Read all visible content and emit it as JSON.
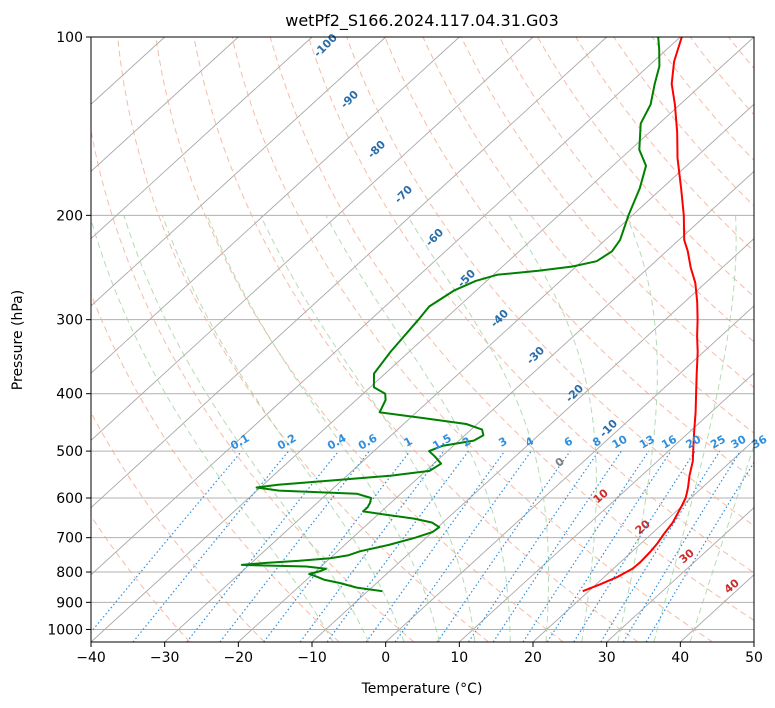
{
  "chart_data": {
    "type": "line",
    "title": "wetPf2_S166.2024.117.04.31.G03",
    "xlabel": "Temperature (°C)",
    "ylabel": "Pressure (hPa)",
    "xlim": [
      -40,
      50
    ],
    "ylim": [
      1050,
      100
    ],
    "y_scale": "log",
    "skew": "skew-T",
    "grid": true,
    "x_ticks": [
      -40,
      -30,
      -20,
      -10,
      0,
      10,
      20,
      30,
      40,
      50
    ],
    "y_ticks": [
      100,
      200,
      300,
      400,
      500,
      600,
      700,
      800,
      900,
      1000
    ],
    "series": [
      {
        "color": "#ff0000",
        "points": [
          [
            862,
            19.2
          ],
          [
            840,
            20.5
          ],
          [
            815,
            21.8
          ],
          [
            790,
            22.6
          ],
          [
            770,
            22.7
          ],
          [
            740,
            22.5
          ],
          [
            715,
            22.2
          ],
          [
            690,
            21.7
          ],
          [
            660,
            21.2
          ],
          [
            640,
            20.6
          ],
          [
            620,
            20.0
          ],
          [
            600,
            19.3
          ],
          [
            590,
            18.8
          ],
          [
            575,
            18.0
          ],
          [
            550,
            16.5
          ],
          [
            520,
            14.8
          ],
          [
            490,
            12.6
          ],
          [
            460,
            10.3
          ],
          [
            430,
            7.9
          ],
          [
            400,
            5.2
          ],
          [
            370,
            2.3
          ],
          [
            340,
            -0.8
          ],
          [
            320,
            -3.2
          ],
          [
            300,
            -5.6
          ],
          [
            280,
            -8.3
          ],
          [
            260,
            -11.4
          ],
          [
            245,
            -14.3
          ],
          [
            230,
            -17.1
          ],
          [
            220,
            -19.3
          ],
          [
            200,
            -23.0
          ],
          [
            180,
            -27.4
          ],
          [
            160,
            -32.4
          ],
          [
            145,
            -36.2
          ],
          [
            130,
            -40.7
          ],
          [
            120,
            -44.2
          ],
          [
            110,
            -47.2
          ],
          [
            100,
            -49.8
          ]
        ]
      },
      {
        "color": "#008000",
        "points": [
          [
            862,
            -8.0
          ],
          [
            850,
            -12.0
          ],
          [
            835,
            -15.0
          ],
          [
            825,
            -17.5
          ],
          [
            815,
            -19.0
          ],
          [
            806,
            -20.5
          ],
          [
            798,
            -19.5
          ],
          [
            790,
            -19.0
          ],
          [
            783,
            -22.0
          ],
          [
            778,
            -31.0
          ],
          [
            772,
            -28.0
          ],
          [
            766,
            -24.0
          ],
          [
            758,
            -20.0
          ],
          [
            750,
            -18.0
          ],
          [
            738,
            -17.0
          ],
          [
            720,
            -14.0
          ],
          [
            700,
            -11.5
          ],
          [
            685,
            -10.0
          ],
          [
            672,
            -9.8
          ],
          [
            660,
            -11.5
          ],
          [
            650,
            -14.5
          ],
          [
            640,
            -19.0
          ],
          [
            632,
            -22.5
          ],
          [
            622,
            -22.5
          ],
          [
            612,
            -22.8
          ],
          [
            600,
            -23.4
          ],
          [
            590,
            -26.0
          ],
          [
            583,
            -37.0
          ],
          [
            576,
            -40.5
          ],
          [
            570,
            -38.0
          ],
          [
            560,
            -31.0
          ],
          [
            550,
            -24.0
          ],
          [
            540,
            -19.5
          ],
          [
            525,
            -19.0
          ],
          [
            510,
            -21.0
          ],
          [
            500,
            -22.5
          ],
          [
            490,
            -21.5
          ],
          [
            480,
            -18.0
          ],
          [
            470,
            -17.5
          ],
          [
            460,
            -18.5
          ],
          [
            450,
            -21.5
          ],
          [
            440,
            -28.0
          ],
          [
            430,
            -35.0
          ],
          [
            410,
            -36.0
          ],
          [
            400,
            -37.0
          ],
          [
            390,
            -39.5
          ],
          [
            370,
            -41.5
          ],
          [
            340,
            -42.5
          ],
          [
            300,
            -43.5
          ],
          [
            285,
            -44.0
          ],
          [
            268,
            -43.0
          ],
          [
            258,
            -41.5
          ],
          [
            252,
            -39.5
          ],
          [
            248,
            -34.5
          ],
          [
            244,
            -30.5
          ],
          [
            239,
            -28.0
          ],
          [
            230,
            -27.4
          ],
          [
            220,
            -28.0
          ],
          [
            200,
            -30.5
          ],
          [
            180,
            -33.0
          ],
          [
            165,
            -35.5
          ],
          [
            155,
            -38.8
          ],
          [
            140,
            -42.5
          ],
          [
            130,
            -44.0
          ],
          [
            120,
            -46.5
          ],
          [
            112,
            -48.5
          ],
          [
            105,
            -51.0
          ],
          [
            100,
            -53.0
          ]
        ]
      }
    ],
    "mixing_ratio_labels": [
      "0.1",
      "0.2",
      "0.4",
      "0.6",
      "1",
      "1.5",
      "2",
      "3",
      "4",
      "6",
      "8",
      "10",
      "13",
      "16",
      "20",
      "25",
      "30",
      "36"
    ],
    "moist_adiabat_labels": [
      "-100",
      "-90",
      "-80",
      "-70",
      "-60",
      "-50",
      "-40",
      "-30",
      "-20",
      "-10"
    ],
    "dry_adiabat_labels": [
      "0",
      "10",
      "20",
      "30",
      "40"
    ]
  }
}
